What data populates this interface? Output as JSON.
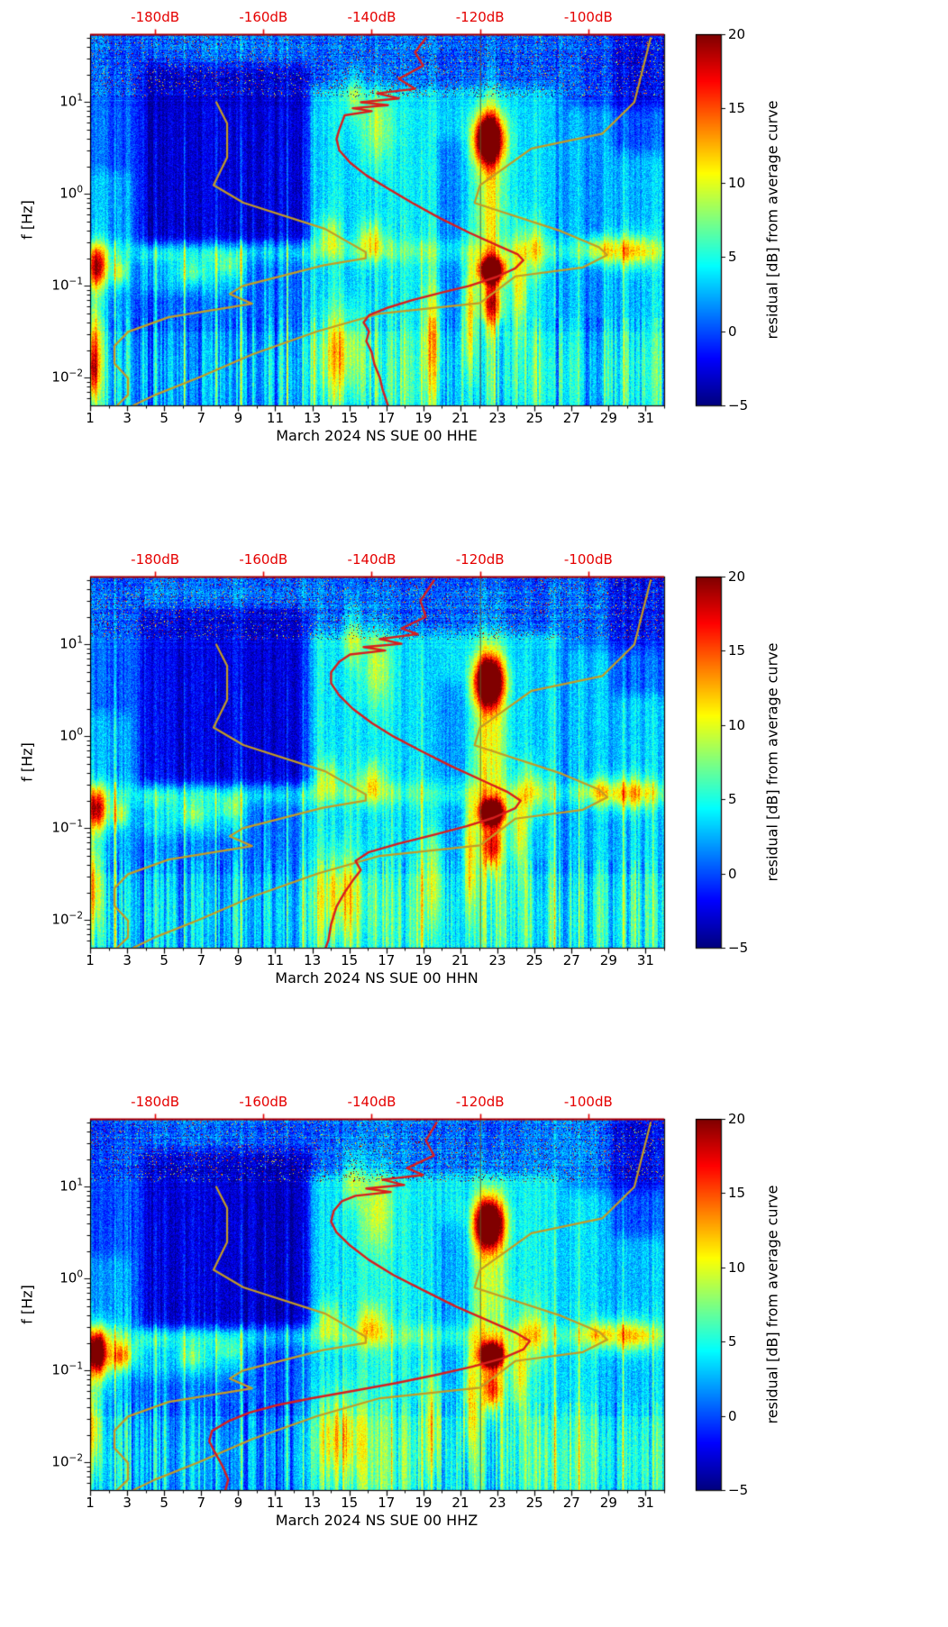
{
  "chart_data": {
    "type": "heatmap",
    "shared": {
      "top_axis": {
        "color": "#e50000",
        "range_db": [
          -192,
          -86
        ],
        "ticks": [
          {
            "label": "-180dB",
            "value": -180
          },
          {
            "label": "-160dB",
            "value": -160
          },
          {
            "label": "-140dB",
            "value": -140
          },
          {
            "label": "-120dB",
            "value": -120
          },
          {
            "label": "-100dB",
            "value": -100
          }
        ]
      },
      "x_axis": {
        "range_days": [
          1,
          32
        ],
        "ticks": [
          1,
          3,
          5,
          7,
          9,
          11,
          13,
          15,
          17,
          19,
          21,
          23,
          25,
          27,
          29,
          31
        ]
      },
      "y_axis": {
        "label": "f [Hz]",
        "range_hz": [
          0.005,
          55
        ],
        "ticks": [
          {
            "base": "10",
            "exp": "1",
            "logf": 1
          },
          {
            "base": "10",
            "exp": "0",
            "logf": 0
          },
          {
            "base": "10",
            "exp": "−1",
            "logf": -1
          },
          {
            "base": "10",
            "exp": "−2",
            "logf": -2
          }
        ]
      },
      "colorbar": {
        "label": "residual [dB] from average curve",
        "range": [
          -5,
          20
        ],
        "colormap": "jet",
        "ticks": [
          {
            "label": "20",
            "value": 20
          },
          {
            "label": "15",
            "value": 15
          },
          {
            "label": "10",
            "value": 10
          },
          {
            "label": "5",
            "value": 5
          },
          {
            "label": "0",
            "value": 0
          },
          {
            "label": "−5",
            "value": -5
          }
        ]
      },
      "colors": {
        "red_curve": "#d81e1e",
        "model_curve": "#c49b25",
        "day_marker_line": "#6e6420",
        "top_axis_text": "#e50000"
      },
      "noise_models": {
        "nlnm": [
          [
            10,
            -168.7
          ],
          [
            5.88,
            -166.7
          ],
          [
            2.5,
            -166.7
          ],
          [
            1.25,
            -169.2
          ],
          [
            0.806,
            -163.7
          ],
          [
            0.417,
            -148.6
          ],
          [
            0.233,
            -141.1
          ],
          [
            0.2,
            -141.1
          ],
          [
            0.167,
            -149.0
          ],
          [
            0.1,
            -163.8
          ],
          [
            0.082,
            -166.2
          ],
          [
            0.064,
            -162.1
          ],
          [
            0.0456,
            -177.5
          ],
          [
            0.0316,
            -185.0
          ],
          [
            0.0222,
            -187.5
          ],
          [
            0.0143,
            -187.5
          ],
          [
            0.0099,
            -185.0
          ],
          [
            0.0065,
            -185.0
          ],
          [
            0.005,
            -187.0
          ]
        ],
        "nhnm": [
          [
            50,
            -88.5
          ],
          [
            10,
            -91.5
          ],
          [
            4.55,
            -97.4
          ],
          [
            3.13,
            -110.5
          ],
          [
            1.25,
            -120.0
          ],
          [
            0.8,
            -121.0
          ],
          [
            0.394,
            -105.0
          ],
          [
            0.263,
            -98.0
          ],
          [
            0.217,
            -96.5
          ],
          [
            0.159,
            -101.0
          ],
          [
            0.127,
            -113.5
          ],
          [
            0.065,
            -120.0
          ],
          [
            0.05,
            -138.5
          ],
          [
            0.032,
            -150.0
          ],
          [
            0.018,
            -162.0
          ],
          [
            0.01,
            -172.0
          ],
          [
            0.0065,
            -180.0
          ],
          [
            0.005,
            -184.0
          ]
        ]
      },
      "texture": {
        "base": 0.6,
        "pixel_noise": 3.2,
        "marker_db": -120,
        "freq_bands": [
          {
            "logf": -0.62,
            "sigma": 0.13,
            "amp": 2.6
          },
          {
            "logf": -1.95,
            "sigma": 0.45,
            "amp": 1.1
          }
        ],
        "regions": [
          {
            "d0": 12.8,
            "d1": 26.3,
            "f0": -2.35,
            "f1": 1.15,
            "amp": 3.2
          },
          {
            "d0": 26.8,
            "d1": 32.2,
            "f0": -2.35,
            "f1": 0.95,
            "amp": 2.3
          },
          {
            "d0": 0.8,
            "d1": 3.3,
            "f0": -2.35,
            "f1": 0.25,
            "amp": 2.0
          },
          {
            "d0": 3.8,
            "d1": 12.9,
            "f0": -0.55,
            "f1": 1.4,
            "amp": -3.6
          },
          {
            "d0": 3.5,
            "d1": 9.5,
            "f0": -1.08,
            "f1": -0.6,
            "amp": 2.2
          },
          {
            "d0": 29.2,
            "d1": 32.2,
            "f0": 0.45,
            "f1": 1.8,
            "amp": -2.6
          },
          {
            "d0": 19.8,
            "d1": 21.3,
            "f0": -2.3,
            "f1": 0.6,
            "amp": -2.0
          }
        ],
        "blobs": [
          {
            "day": 22.55,
            "sd": 0.75,
            "logf": 0.6,
            "sl": 0.26,
            "amp": 26
          },
          {
            "day": 22.7,
            "sd": 0.65,
            "logf": -0.83,
            "sl": 0.13,
            "amp": 26
          },
          {
            "day": 22.7,
            "sd": 0.55,
            "logf": -1.2,
            "sl": 0.25,
            "amp": 12
          },
          {
            "day": 22.6,
            "sd": 0.9,
            "logf": -0.1,
            "sl": 1.1,
            "amp": 7
          },
          {
            "day": 21.5,
            "sd": 0.35,
            "logf": -1.3,
            "sl": 0.6,
            "amp": 8
          },
          {
            "day": 24.2,
            "sd": 0.4,
            "logf": -1.0,
            "sl": 0.5,
            "amp": 7
          },
          {
            "day": 1.35,
            "sd": 0.55,
            "logf": -0.8,
            "sl": 0.22,
            "amp": 16
          },
          {
            "day": 1.2,
            "sd": 0.4,
            "logf": -1.6,
            "sl": 0.5,
            "amp": 8
          },
          {
            "day": 2.6,
            "sd": 0.5,
            "logf": -0.85,
            "sl": 0.15,
            "amp": 7
          },
          {
            "day": 30.2,
            "sd": 1.3,
            "logf": -0.62,
            "sl": 0.18,
            "amp": 7
          },
          {
            "day": 28.4,
            "sd": 0.8,
            "logf": -0.6,
            "sl": 0.15,
            "amp": 5
          },
          {
            "day": 16.2,
            "sd": 0.7,
            "logf": -0.5,
            "sl": 0.22,
            "amp": 6
          },
          {
            "day": 13.9,
            "sd": 0.6,
            "logf": -0.45,
            "sl": 0.2,
            "amp": 5
          },
          {
            "day": 14.5,
            "sd": 1.2,
            "logf": -1.7,
            "sl": 0.45,
            "amp": 6
          },
          {
            "day": 16.5,
            "sd": 0.8,
            "logf": 0.75,
            "sl": 0.45,
            "amp": 5
          },
          {
            "day": 15.2,
            "sd": 0.5,
            "logf": 1.1,
            "sl": 0.3,
            "amp": 5
          },
          {
            "day": 19.5,
            "sd": 0.5,
            "logf": -1.5,
            "sl": 0.6,
            "amp": 6
          },
          {
            "day": 25.0,
            "sd": 0.6,
            "logf": -0.6,
            "sl": 0.3,
            "amp": 5
          },
          {
            "day": 6.5,
            "sd": 0.8,
            "logf": -0.85,
            "sl": 0.12,
            "amp": 4
          },
          {
            "day": 8.5,
            "sd": 0.7,
            "logf": -0.8,
            "sl": 0.12,
            "amp": 3.5
          }
        ],
        "spikes": [
          {
            "day": 2.35,
            "amp": 7
          },
          {
            "day": 4.55,
            "amp": 5
          },
          {
            "day": 6.1,
            "amp": 6
          },
          {
            "day": 7.8,
            "amp": 5
          },
          {
            "day": 9.15,
            "amp": 7
          },
          {
            "day": 10.45,
            "amp": 5
          },
          {
            "day": 11.65,
            "amp": 6
          },
          {
            "day": 12.5,
            "amp": 5
          },
          {
            "day": 17.3,
            "amp": 4
          },
          {
            "day": 18.9,
            "amp": 5
          },
          {
            "day": 26.1,
            "amp": 5
          },
          {
            "day": 27.4,
            "amp": 4
          },
          {
            "day": 29.8,
            "amp": 5
          },
          {
            "day": 31.4,
            "amp": 4
          }
        ]
      }
    },
    "panels": [
      {
        "xlabel": "March 2024 NS SUE 00 HHE",
        "channel": "HHE",
        "seed": 17,
        "extra_blobs": [
          {
            "day": 1.15,
            "sd": 0.35,
            "logf": -1.95,
            "sl": 0.3,
            "amp": 9
          }
        ],
        "red_curve": [
          [
            50,
            -130
          ],
          [
            35,
            -132
          ],
          [
            25,
            -130.5
          ],
          [
            18,
            -135
          ],
          [
            14,
            -132
          ],
          [
            12.5,
            -139
          ],
          [
            11,
            -135
          ],
          [
            10,
            -142
          ],
          [
            9.3,
            -137
          ],
          [
            8.6,
            -143.5
          ],
          [
            8,
            -140
          ],
          [
            7.2,
            -145
          ],
          [
            6,
            -145.5
          ],
          [
            5,
            -146
          ],
          [
            4,
            -146.5
          ],
          [
            3,
            -146
          ],
          [
            2.2,
            -144
          ],
          [
            1.6,
            -141
          ],
          [
            1.15,
            -137
          ],
          [
            0.8,
            -132.5
          ],
          [
            0.55,
            -127.5
          ],
          [
            0.38,
            -122
          ],
          [
            0.28,
            -117
          ],
          [
            0.22,
            -113
          ],
          [
            0.19,
            -112
          ],
          [
            0.155,
            -113.5
          ],
          [
            0.125,
            -117
          ],
          [
            0.1,
            -122
          ],
          [
            0.085,
            -127
          ],
          [
            0.07,
            -132.5
          ],
          [
            0.058,
            -137
          ],
          [
            0.048,
            -140.5
          ],
          [
            0.04,
            -141.5
          ],
          [
            0.032,
            -140.5
          ],
          [
            0.025,
            -141
          ],
          [
            0.019,
            -140
          ],
          [
            0.014,
            -139.5
          ],
          [
            0.01,
            -138.5
          ],
          [
            0.0075,
            -138
          ],
          [
            0.005,
            -137
          ]
        ]
      },
      {
        "xlabel": "March 2024 NS SUE 00 HHN",
        "channel": "HHN",
        "seed": 53,
        "extra_blobs": [],
        "red_curve": [
          [
            50,
            -128.5
          ],
          [
            30,
            -131
          ],
          [
            20,
            -130
          ],
          [
            15,
            -134.5
          ],
          [
            13,
            -131.5
          ],
          [
            11.5,
            -138.5
          ],
          [
            10.2,
            -134.5
          ],
          [
            9.4,
            -141.5
          ],
          [
            8.6,
            -137.5
          ],
          [
            7.8,
            -144
          ],
          [
            6.5,
            -146
          ],
          [
            5,
            -147.5
          ],
          [
            3.8,
            -147.5
          ],
          [
            2.8,
            -146
          ],
          [
            2,
            -143.5
          ],
          [
            1.4,
            -140
          ],
          [
            1,
            -136
          ],
          [
            0.7,
            -131
          ],
          [
            0.48,
            -125.5
          ],
          [
            0.33,
            -119.5
          ],
          [
            0.25,
            -115
          ],
          [
            0.2,
            -112.5
          ],
          [
            0.165,
            -113.5
          ],
          [
            0.13,
            -117.5
          ],
          [
            0.105,
            -122.5
          ],
          [
            0.085,
            -128.5
          ],
          [
            0.068,
            -135
          ],
          [
            0.055,
            -140.5
          ],
          [
            0.044,
            -143
          ],
          [
            0.035,
            -142
          ],
          [
            0.027,
            -143.5
          ],
          [
            0.02,
            -145
          ],
          [
            0.014,
            -146.5
          ],
          [
            0.009,
            -147.5
          ],
          [
            0.006,
            -148
          ],
          [
            0.005,
            -148.5
          ]
        ]
      },
      {
        "xlabel": "March 2024 NS SUE 00 HHZ",
        "channel": "HHZ",
        "seed": 91,
        "extra_blobs": [
          {
            "day": 1.5,
            "sd": 0.8,
            "logf": -0.85,
            "sl": 0.3,
            "amp": 8
          },
          {
            "day": 3.0,
            "sd": 0.7,
            "logf": -0.82,
            "sl": 0.18,
            "amp": 5
          }
        ],
        "red_curve": [
          [
            50,
            -128
          ],
          [
            32,
            -130
          ],
          [
            22,
            -128.5
          ],
          [
            16,
            -133.5
          ],
          [
            13.5,
            -130.5
          ],
          [
            12,
            -138
          ],
          [
            10.5,
            -134
          ],
          [
            9.6,
            -141
          ],
          [
            8.8,
            -136.5
          ],
          [
            8,
            -143
          ],
          [
            7,
            -145.5
          ],
          [
            5.5,
            -147
          ],
          [
            4.2,
            -147.5
          ],
          [
            3.2,
            -146.5
          ],
          [
            2.3,
            -144
          ],
          [
            1.6,
            -140.5
          ],
          [
            1.1,
            -136
          ],
          [
            0.75,
            -130.5
          ],
          [
            0.5,
            -124.5
          ],
          [
            0.35,
            -118.5
          ],
          [
            0.26,
            -113.5
          ],
          [
            0.21,
            -110.8
          ],
          [
            0.17,
            -112
          ],
          [
            0.135,
            -116
          ],
          [
            0.11,
            -121.5
          ],
          [
            0.09,
            -128
          ],
          [
            0.073,
            -135.5
          ],
          [
            0.06,
            -143.5
          ],
          [
            0.05,
            -151
          ],
          [
            0.042,
            -157.5
          ],
          [
            0.035,
            -162.5
          ],
          [
            0.028,
            -166.5
          ],
          [
            0.022,
            -169.5
          ],
          [
            0.017,
            -170
          ],
          [
            0.013,
            -169
          ],
          [
            0.009,
            -167.5
          ],
          [
            0.0065,
            -166.5
          ],
          [
            0.005,
            -167
          ]
        ]
      }
    ]
  }
}
